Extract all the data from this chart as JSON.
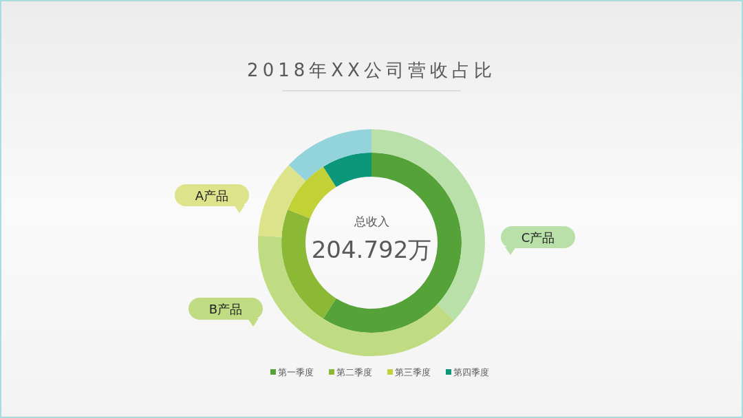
{
  "chart_data": [
    {
      "type": "donut",
      "title": "2018年XX公司营收占比",
      "categories": [
        "第一季度",
        "第二季度",
        "第三季度",
        "第四季度"
      ],
      "values": [
        59,
        22,
        10,
        9
      ],
      "colors": [
        "#55a239",
        "#8bb935",
        "#c2d136",
        "#0d977a"
      ],
      "legend": "bottom",
      "annotations": [
        "总收入",
        "204.792万"
      ]
    },
    {
      "type": "donut",
      "categories": [
        "C产品",
        "B产品",
        "A产品",
        null
      ],
      "values": [
        37,
        39,
        11,
        13
      ],
      "colors": [
        "#b8e0a8",
        "#bfdc82",
        "#dce38a",
        "#93d3dc"
      ]
    }
  ]
}
